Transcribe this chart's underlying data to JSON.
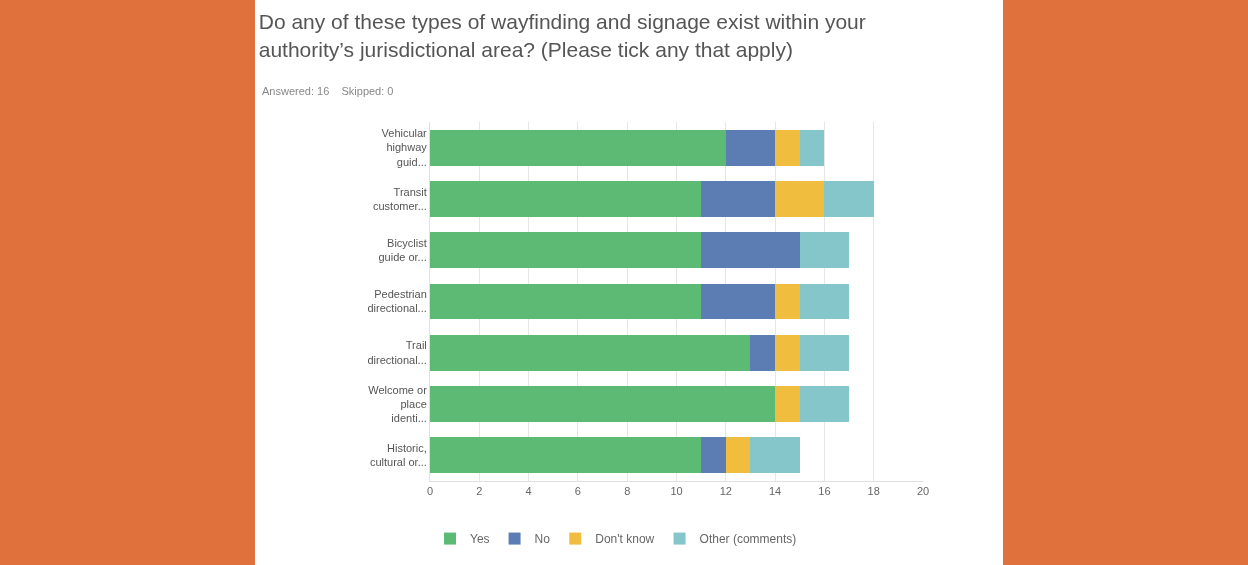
{
  "chart_data": {
    "type": "bar",
    "orientation": "horizontal",
    "stacked": true,
    "title": "Do any of these types of wayfinding and signage exist within your authority’s jurisdictional area? (Please tick any that apply)",
    "subtitle": "Answered: 16    Skipped: 0",
    "categories": [
      "Vehicular highway guid...",
      "Transit customer...",
      "Bicyclist guide or...",
      "Pedestrian directional...",
      "Trail directional...",
      "Welcome or place identi...",
      "Historic, cultural or..."
    ],
    "series": [
      {
        "name": "Yes",
        "color": "#5cba74",
        "values": [
          12,
          11,
          11,
          11,
          13,
          14,
          11
        ]
      },
      {
        "name": "No",
        "color": "#5b7db4",
        "values": [
          2,
          3,
          4,
          3,
          1,
          0,
          1
        ]
      },
      {
        "name": "Don't know",
        "color": "#f0bd3f",
        "values": [
          1,
          2,
          0,
          1,
          1,
          1,
          1
        ]
      },
      {
        "name": "Other (comments)",
        "color": "#85c6cb",
        "values": [
          1,
          2,
          2,
          2,
          2,
          2,
          2
        ]
      }
    ],
    "xlim": [
      0,
      20
    ],
    "xticks": [
      0,
      2,
      4,
      6,
      8,
      10,
      12,
      14,
      16,
      18,
      20
    ],
    "grid": "x",
    "legend": "bottom"
  }
}
